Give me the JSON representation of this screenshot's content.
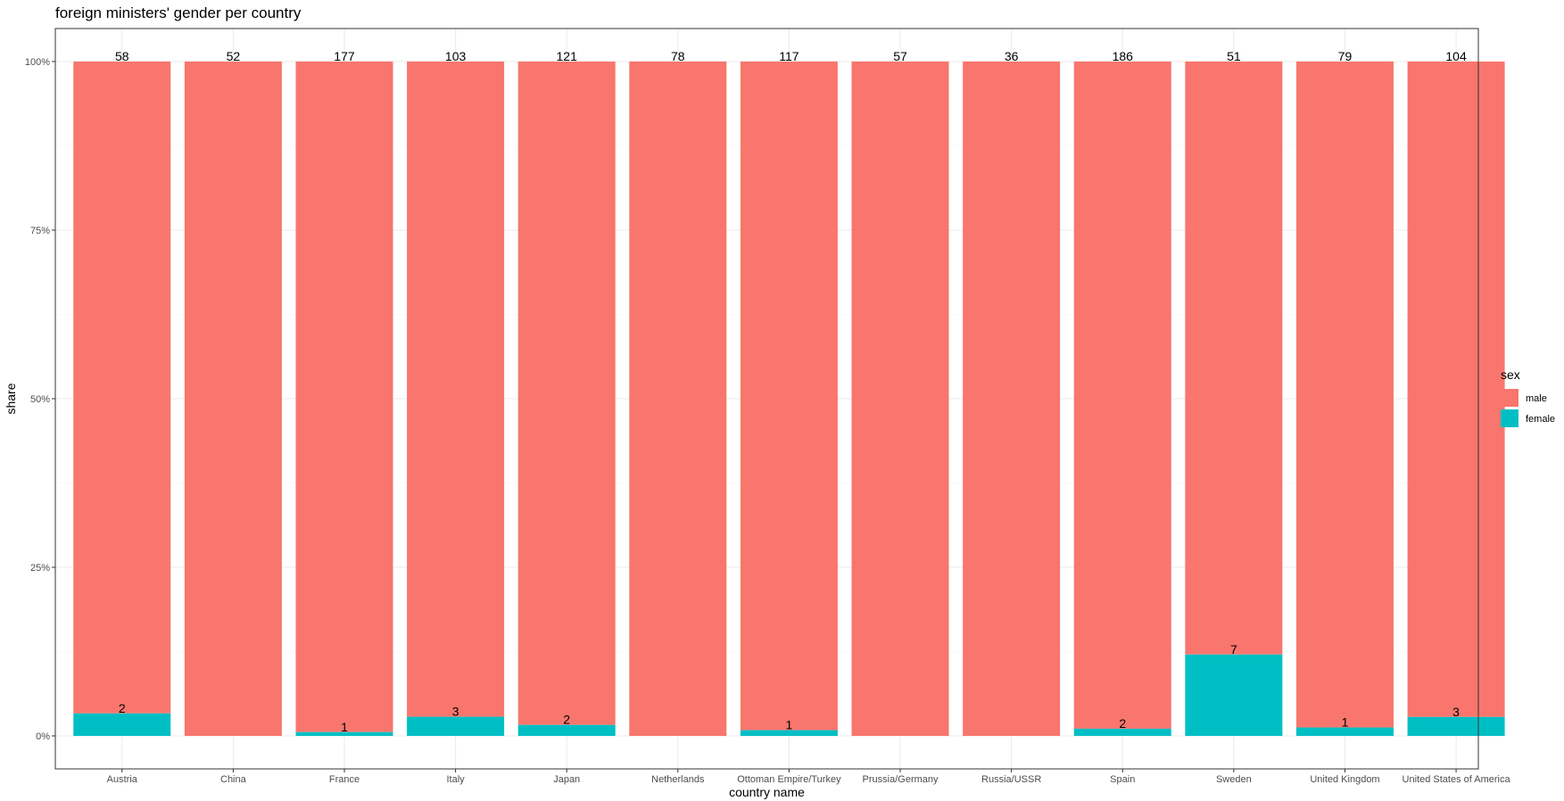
{
  "chart_data": {
    "type": "bar",
    "stacked": true,
    "normalized": true,
    "title": "foreign ministers' gender per country",
    "xlabel": "country name",
    "ylabel": "share",
    "ylim": [
      0,
      1
    ],
    "yticks": [
      "0%",
      "25%",
      "50%",
      "75%",
      "100%"
    ],
    "grid": true,
    "legend_position": "right",
    "legend_title": "sex",
    "categories": [
      "Austria",
      "China",
      "France",
      "Italy",
      "Japan",
      "Netherlands",
      "Ottoman Empire/Turkey",
      "Prussia/Germany",
      "Russia/USSR",
      "Spain",
      "Sweden",
      "United Kingdom",
      "United States of America"
    ],
    "series": [
      {
        "name": "male",
        "color": "#F8766D",
        "values": [
          58,
          52,
          177,
          103,
          121,
          78,
          117,
          57,
          36,
          186,
          51,
          79,
          104
        ]
      },
      {
        "name": "female",
        "color": "#00BFC4",
        "values": [
          2,
          0,
          1,
          3,
          2,
          0,
          1,
          0,
          0,
          2,
          7,
          1,
          3
        ]
      }
    ]
  }
}
